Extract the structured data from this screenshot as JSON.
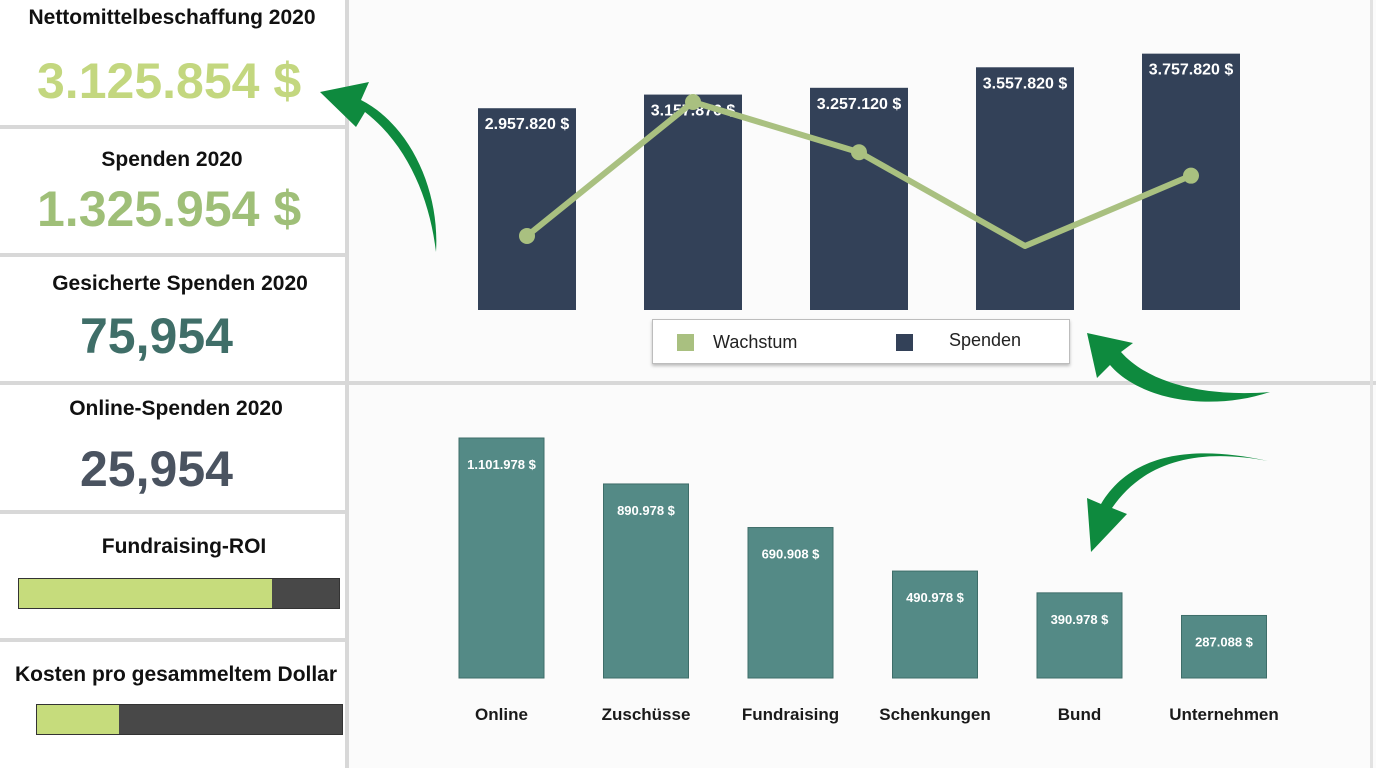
{
  "kpis": {
    "net_funds": {
      "title": "Nettomittelbeschaffung 2020",
      "value": "3.125.854 $"
    },
    "donations": {
      "title": "Spenden 2020",
      "value": "1.325.954 $"
    },
    "secured": {
      "title": "Gesicherte Spenden 2020",
      "value": "75,954"
    },
    "online": {
      "title": "Online-Spenden 2020",
      "value": "25,954"
    },
    "roi": {
      "title": "Fundraising-ROI",
      "fill_fraction": 0.79
    },
    "cost": {
      "title": "Kosten pro gesammeltem Dollar",
      "fill_fraction": 0.27
    }
  },
  "colors": {
    "kpi_net": "#c3d77f",
    "kpi_donations": "#9fbf78",
    "kpi_secured": "#3f6e68",
    "kpi_online": "#4a5360",
    "bar_navy": "#334158",
    "line_green": "#a9c080",
    "bar_teal": "#548a86",
    "progress_green": "#c6dc7c",
    "progress_track": "#484848",
    "arrow_green": "#0e8a3e"
  },
  "chart_data": [
    {
      "type": "bar",
      "categories": [
        "",
        "",
        "",
        "",
        ""
      ],
      "series": [
        {
          "name": "Spenden",
          "kind": "bar",
          "values": [
            2957820,
            3157876,
            3257120,
            3557820,
            3757820
          ],
          "labels": [
            "2.957.820 $",
            "3.157.876 $",
            "3.257.120 $",
            "3.557.820 $",
            "3.757.820 $"
          ]
        },
        {
          "name": "Wachstum",
          "kind": "line",
          "values": [
            0.6,
            1.0,
            0.85,
            0.57,
            0.78
          ]
        }
      ],
      "ylim": [
        0,
        4000000
      ],
      "legend": {
        "position": "bottom",
        "entries": [
          "Wachstum",
          "Spenden"
        ]
      },
      "grid": false
    },
    {
      "type": "bar",
      "categories": [
        "Online",
        "Zuschüsse",
        "Fundraising",
        "Schenkungen",
        "Bund",
        "Unternehmen"
      ],
      "values": [
        1101978,
        890978,
        690908,
        490978,
        390978,
        287088
      ],
      "labels": [
        "1.101.978 $",
        "890.978 $",
        "690.908 $",
        "490.978 $",
        "390.978 $",
        "287.088 $"
      ],
      "ylim": [
        0,
        1101978
      ],
      "grid": false
    }
  ]
}
